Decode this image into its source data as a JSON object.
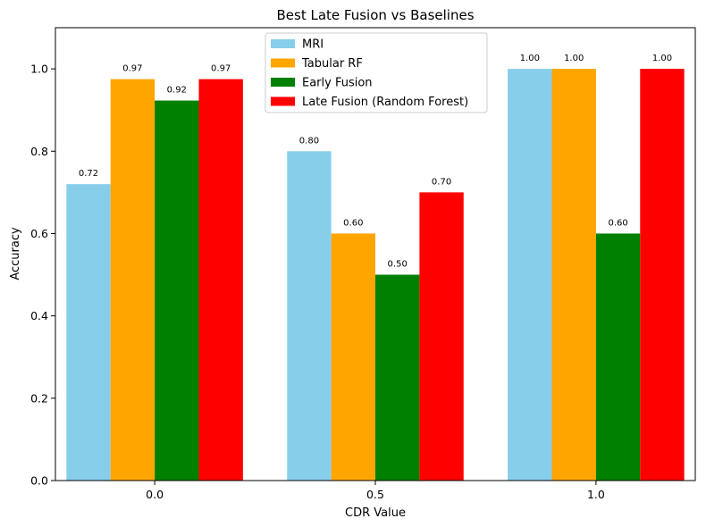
{
  "chart_data": {
    "type": "bar",
    "title": "Best Late Fusion vs Baselines",
    "xlabel": "CDR Value",
    "ylabel": "Accuracy",
    "categories": [
      "0.0",
      "0.5",
      "1.0"
    ],
    "ylim": [
      0,
      1.1
    ],
    "yticks": [
      "0.0",
      "0.2",
      "0.4",
      "0.6",
      "0.8",
      "1.0"
    ],
    "ytick_values": [
      0,
      0.2,
      0.4,
      0.6,
      0.8,
      1.0
    ],
    "grid": false,
    "legend_position": "top-center",
    "series": [
      {
        "name": "MRI",
        "color": "#87ceeb",
        "values": [
          0.72,
          0.8,
          1.0
        ],
        "labels": [
          "0.72",
          "0.80",
          "1.00"
        ]
      },
      {
        "name": "Tabular RF",
        "color": "#ffa500",
        "values": [
          0.975,
          0.6,
          1.0
        ],
        "labels": [
          "0.97",
          "0.60",
          "1.00"
        ]
      },
      {
        "name": "Early Fusion",
        "color": "#008000",
        "values": [
          0.923,
          0.5,
          0.6
        ],
        "labels": [
          "0.92",
          "0.50",
          "0.60"
        ]
      },
      {
        "name": "Late Fusion (Random Forest)",
        "color": "#ff0000",
        "values": [
          0.975,
          0.7,
          1.0
        ],
        "labels": [
          "0.97",
          "0.70",
          "1.00"
        ]
      }
    ]
  }
}
